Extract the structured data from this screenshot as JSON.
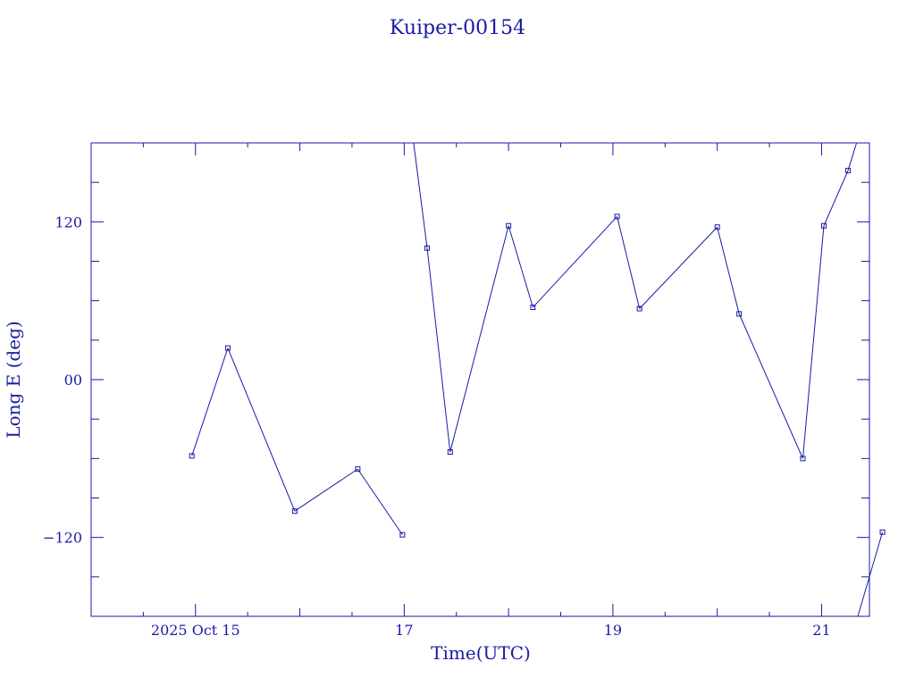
{
  "chart_data": {
    "type": "line",
    "title": "Kuiper-00154",
    "xlabel": "Time(UTC)",
    "ylabel": "Long E (deg)",
    "x_ticks": [
      {
        "value": "2025-10-15",
        "label": "2025 Oct 15"
      },
      {
        "value": "2025-10-17",
        "label": "17"
      },
      {
        "value": "2025-10-19",
        "label": "19"
      },
      {
        "value": "2025-10-21",
        "label": "21"
      }
    ],
    "y_ticks": [
      {
        "value": 120,
        "label": "120"
      },
      {
        "value": 0,
        "label": "00"
      },
      {
        "value": -120,
        "label": "-120"
      }
    ],
    "xlim": [
      "2025-10-14T00:00",
      "2025-10-21T11:00"
    ],
    "ylim": [
      -180,
      180
    ],
    "grid": false,
    "legend": "none",
    "series": [
      {
        "points": [
          {
            "x": "2025-10-14T23:10",
            "y": -58
          },
          {
            "x": "2025-10-15T07:26",
            "y": 24
          },
          {
            "x": "2025-10-15T22:50",
            "y": -100
          },
          {
            "x": "2025-10-16T13:19",
            "y": -68
          },
          {
            "x": "2025-10-16T23:36",
            "y": -118
          },
          {
            "x": "2025-10-17T02:10",
            "y": 180
          },
          {
            "x": "2025-10-17T05:17",
            "y": 100
          },
          {
            "x": "2025-10-17T10:34",
            "y": -55
          },
          {
            "x": "2025-10-18T00:00",
            "y": 117
          },
          {
            "x": "2025-10-18T05:36",
            "y": 55
          },
          {
            "x": "2025-10-19T00:58",
            "y": 124
          },
          {
            "x": "2025-10-19T06:07",
            "y": 54
          },
          {
            "x": "2025-10-20T00:00",
            "y": 116
          },
          {
            "x": "2025-10-20T05:02",
            "y": 50
          },
          {
            "x": "2025-10-20T19:41",
            "y": -60
          },
          {
            "x": "2025-10-21T00:31",
            "y": 117
          },
          {
            "x": "2025-10-21T06:05",
            "y": 159
          },
          {
            "x": "2025-10-21T08:02",
            "y": 180
          },
          {
            "x": "2025-10-21T08:20",
            "y": -180
          },
          {
            "x": "2025-10-21T14:00",
            "y": -116
          }
        ]
      }
    ]
  }
}
